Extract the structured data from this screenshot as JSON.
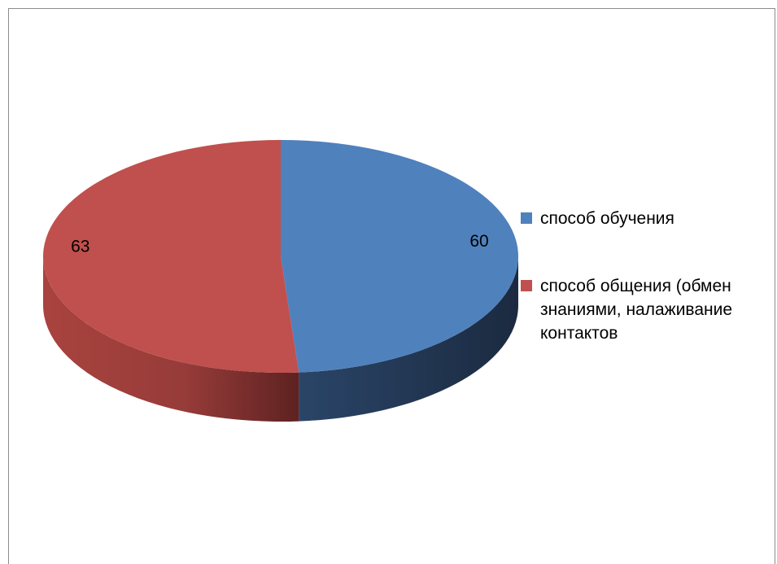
{
  "chart_data": {
    "type": "pie",
    "title": "",
    "categories": [
      "способ обучения",
      "способ общения (обмен знаниями, налаживание контактов"
    ],
    "values": [
      60,
      63
    ],
    "colors": [
      "#4f81bd",
      "#c0504d"
    ],
    "side_colors": [
      "#1f3048",
      "#7a2e2c"
    ],
    "data_labels": [
      "60",
      "63"
    ],
    "legend_position": "right",
    "style": "3d"
  }
}
